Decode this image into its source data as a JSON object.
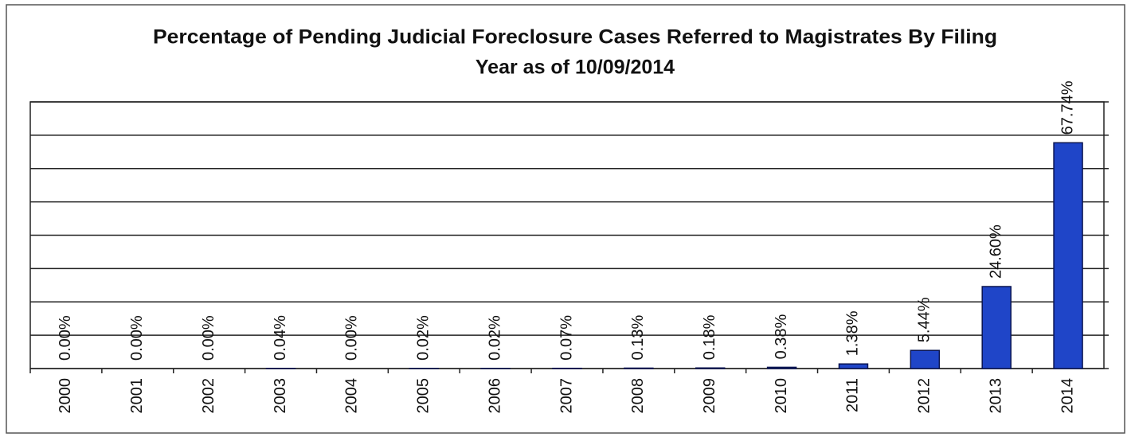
{
  "chart_data": {
    "type": "bar",
    "title": [
      "Percentage of Pending Judicial Foreclosure Cases Referred to Magistrates By Filing",
      "Year as of 10/09/2014"
    ],
    "categories": [
      "2000",
      "2001",
      "2002",
      "2003",
      "2004",
      "2005",
      "2006",
      "2007",
      "2008",
      "2009",
      "2010",
      "2011",
      "2012",
      "2013",
      "2014"
    ],
    "values": [
      0,
      0,
      0,
      0.04,
      0,
      0.02,
      0.02,
      0.07,
      0.13,
      0.18,
      0.38,
      1.38,
      5.44,
      24.6,
      67.74
    ],
    "value_labels": [
      "0.00%",
      "0.00%",
      "0.00%",
      "0.04%",
      "0.00%",
      "0.02%",
      "0.02%",
      "0.07%",
      "0.13%",
      "0.18%",
      "0.38%",
      "1.38%",
      "5.44%",
      "24.60%",
      "67.74%"
    ],
    "color": "#1f45c8",
    "ylim": [
      0,
      80
    ],
    "yticks": [
      0,
      10,
      20,
      30,
      40,
      50,
      60,
      70,
      80
    ],
    "grid": true
  }
}
